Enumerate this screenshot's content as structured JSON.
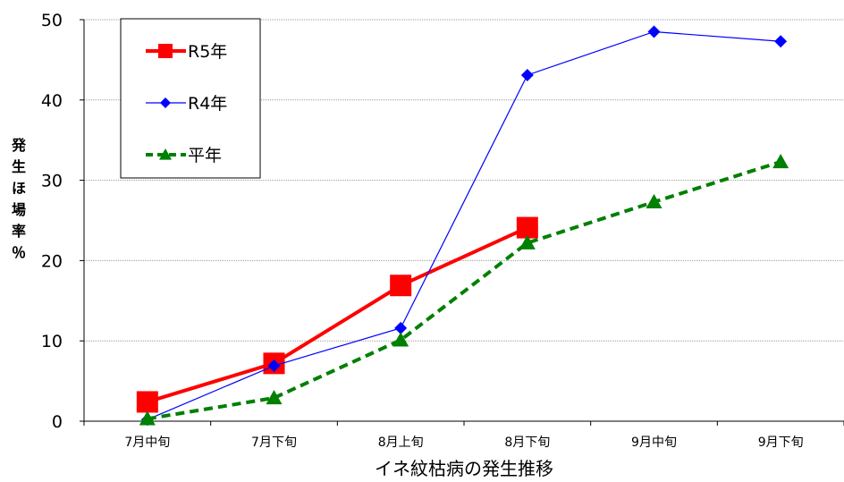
{
  "chart_data": {
    "type": "line",
    "title": "",
    "xlabel": "イネ紋枯病の発生推移",
    "ylabel": "発生ほ場率％",
    "categories": [
      "7月中旬",
      "7月下旬",
      "8月上旬",
      "8月下旬",
      "9月中旬",
      "9月下旬"
    ],
    "ylim": [
      0,
      50
    ],
    "yticks": [
      0,
      10,
      20,
      30,
      40,
      50
    ],
    "grid": true,
    "legend": "top-left",
    "series": [
      {
        "name": "R5年",
        "values": [
          2.4,
          7.2,
          16.9,
          24.1,
          null,
          null
        ],
        "color": "#ff0000",
        "marker": "square",
        "style": "solid"
      },
      {
        "name": "R4年",
        "values": [
          0.2,
          6.9,
          11.6,
          43.1,
          48.5,
          47.3
        ],
        "color": "#0000ff",
        "marker": "diamond",
        "style": "solid"
      },
      {
        "name": "平年",
        "values": [
          0.3,
          2.9,
          10.1,
          22.2,
          27.3,
          32.3
        ],
        "color": "#008000",
        "marker": "triangle",
        "style": "dashed"
      }
    ]
  }
}
